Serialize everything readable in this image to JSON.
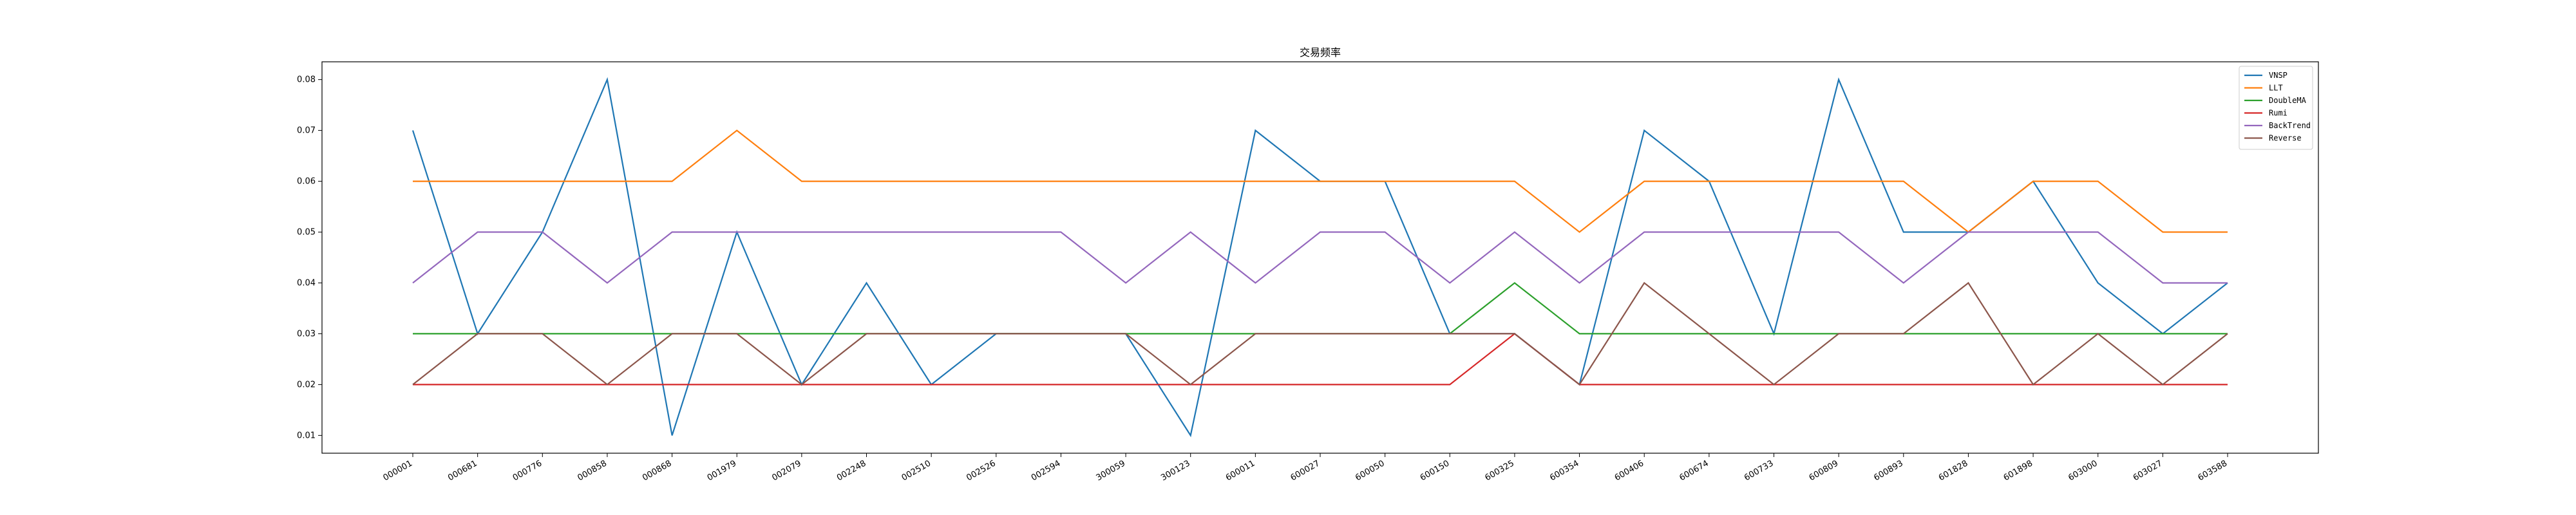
{
  "chart_data": {
    "type": "line",
    "title": "交易频率",
    "xlabel": "",
    "ylabel": "",
    "ylim": [
      0.0065,
      0.0835
    ],
    "yticks": [
      0.01,
      0.02,
      0.03,
      0.04,
      0.05,
      0.06,
      0.07,
      0.08
    ],
    "grid": false,
    "legend_position": "top-right",
    "categories": [
      "000001",
      "000681",
      "000776",
      "000858",
      "000868",
      "001979",
      "002079",
      "002248",
      "002510",
      "002526",
      "002594",
      "300059",
      "300123",
      "600011",
      "600027",
      "600050",
      "600150",
      "600325",
      "600354",
      "600406",
      "600674",
      "600733",
      "600809",
      "600893",
      "601828",
      "601898",
      "603000",
      "603027",
      "603588"
    ],
    "series": [
      {
        "name": "VNSP",
        "color": "#1f77b4",
        "values": [
          0.07,
          0.03,
          0.05,
          0.08,
          0.01,
          0.05,
          0.02,
          0.04,
          0.02,
          0.03,
          0.03,
          0.03,
          0.01,
          0.07,
          0.06,
          0.06,
          0.03,
          0.03,
          0.02,
          0.07,
          0.06,
          0.03,
          0.08,
          0.05,
          0.05,
          0.06,
          0.04,
          0.03,
          0.04
        ]
      },
      {
        "name": "LLT",
        "color": "#ff7f0e",
        "values": [
          0.06,
          0.06,
          0.06,
          0.06,
          0.06,
          0.07,
          0.06,
          0.06,
          0.06,
          0.06,
          0.06,
          0.06,
          0.06,
          0.06,
          0.06,
          0.06,
          0.06,
          0.06,
          0.05,
          0.06,
          0.06,
          0.06,
          0.06,
          0.06,
          0.05,
          0.06,
          0.06,
          0.05,
          0.05
        ]
      },
      {
        "name": "DoubleMA",
        "color": "#2ca02c",
        "values": [
          0.03,
          0.03,
          0.03,
          0.03,
          0.03,
          0.03,
          0.03,
          0.03,
          0.03,
          0.03,
          0.03,
          0.03,
          0.03,
          0.03,
          0.03,
          0.03,
          0.03,
          0.04,
          0.03,
          0.03,
          0.03,
          0.03,
          0.03,
          0.03,
          0.03,
          0.03,
          0.03,
          0.03,
          0.03
        ]
      },
      {
        "name": "Rumi",
        "color": "#d62728",
        "values": [
          0.02,
          0.02,
          0.02,
          0.02,
          0.02,
          0.02,
          0.02,
          0.02,
          0.02,
          0.02,
          0.02,
          0.02,
          0.02,
          0.02,
          0.02,
          0.02,
          0.02,
          0.03,
          0.02,
          0.02,
          0.02,
          0.02,
          0.02,
          0.02,
          0.02,
          0.02,
          0.02,
          0.02,
          0.02
        ]
      },
      {
        "name": "BackTrend",
        "color": "#9467bd",
        "values": [
          0.04,
          0.05,
          0.05,
          0.04,
          0.05,
          0.05,
          0.05,
          0.05,
          0.05,
          0.05,
          0.05,
          0.04,
          0.05,
          0.04,
          0.05,
          0.05,
          0.04,
          0.05,
          0.04,
          0.05,
          0.05,
          0.05,
          0.05,
          0.04,
          0.05,
          0.05,
          0.05,
          0.04,
          0.04
        ]
      },
      {
        "name": "Reverse",
        "color": "#8c564b",
        "values": [
          0.02,
          0.03,
          0.03,
          0.02,
          0.03,
          0.03,
          0.02,
          0.03,
          0.03,
          0.03,
          0.03,
          0.03,
          0.02,
          0.03,
          0.03,
          0.03,
          0.03,
          0.03,
          0.02,
          0.04,
          0.03,
          0.02,
          0.03,
          0.03,
          0.04,
          0.02,
          0.03,
          0.02,
          0.03
        ]
      }
    ]
  }
}
